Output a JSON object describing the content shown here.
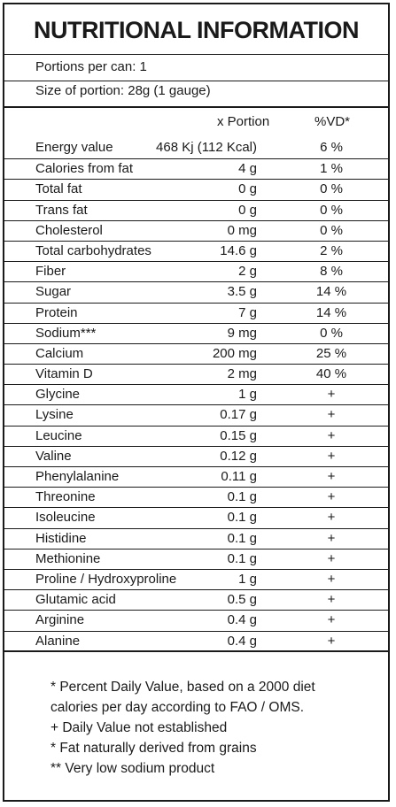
{
  "title": "NUTRITIONAL INFORMATION",
  "portions_per_can": "Portions per can: 1",
  "size_of_portion": "Size of portion: 28g (1 gauge)",
  "columns": {
    "portion": "x Portion",
    "dv": "%VD*"
  },
  "nutrients": [
    {
      "name": "Energy value",
      "amount": "468 Kj (112 Kcal)",
      "dv": "6 %"
    },
    {
      "name": "Calories from fat",
      "amount": "4 g",
      "dv": "1 %"
    },
    {
      "name": "Total fat",
      "amount": "0 g",
      "dv": "0 %"
    },
    {
      "name": "Trans fat",
      "amount": "0 g",
      "dv": "0 %"
    },
    {
      "name": "Cholesterol",
      "amount": "0 mg",
      "dv": "0 %"
    },
    {
      "name": "Total carbohydrates",
      "amount": "14.6 g",
      "dv": "2 %"
    },
    {
      "name": "Fiber",
      "amount": "2 g",
      "dv": "8 %"
    },
    {
      "name": "Sugar",
      "amount": "3.5 g",
      "dv": "14 %"
    },
    {
      "name": "Protein",
      "amount": "7 g",
      "dv": "14 %"
    },
    {
      "name": "Sodium***",
      "amount": "9 mg",
      "dv": "0 %"
    },
    {
      "name": "Calcium",
      "amount": "200 mg",
      "dv": "25 %"
    },
    {
      "name": "Vitamin D",
      "amount": "2 mg",
      "dv": "40 %"
    },
    {
      "name": "Glycine",
      "amount": "1 g",
      "dv": "+"
    },
    {
      "name": "Lysine",
      "amount": "0.17 g",
      "dv": "+"
    },
    {
      "name": "Leucine",
      "amount": "0.15 g",
      "dv": "+"
    },
    {
      "name": "Valine",
      "amount": "0.12 g",
      "dv": "+"
    },
    {
      "name": "Phenylalanine",
      "amount": "0.11 g",
      "dv": "+"
    },
    {
      "name": "Threonine",
      "amount": "0.1 g",
      "dv": "+"
    },
    {
      "name": "Isoleucine",
      "amount": "0.1 g",
      "dv": "+"
    },
    {
      "name": "Histidine",
      "amount": "0.1 g",
      "dv": "+"
    },
    {
      "name": "Methionine",
      "amount": "0.1 g",
      "dv": "+"
    },
    {
      "name": "Proline / Hydroxyproline",
      "amount": "1 g",
      "dv": "+"
    },
    {
      "name": "Glutamic acid",
      "amount": "0.5 g",
      "dv": "+"
    },
    {
      "name": "Arginine",
      "amount": "0.4 g",
      "dv": "+"
    },
    {
      "name": "Alanine",
      "amount": "0.4 g",
      "dv": "+"
    }
  ],
  "footnotes": [
    "* Percent Daily Value, based on a 2000 diet",
    "calories per day according to FAO / OMS.",
    "+ Daily Value not established",
    "* Fat naturally derived from grains",
    "** Very low sodium product"
  ]
}
